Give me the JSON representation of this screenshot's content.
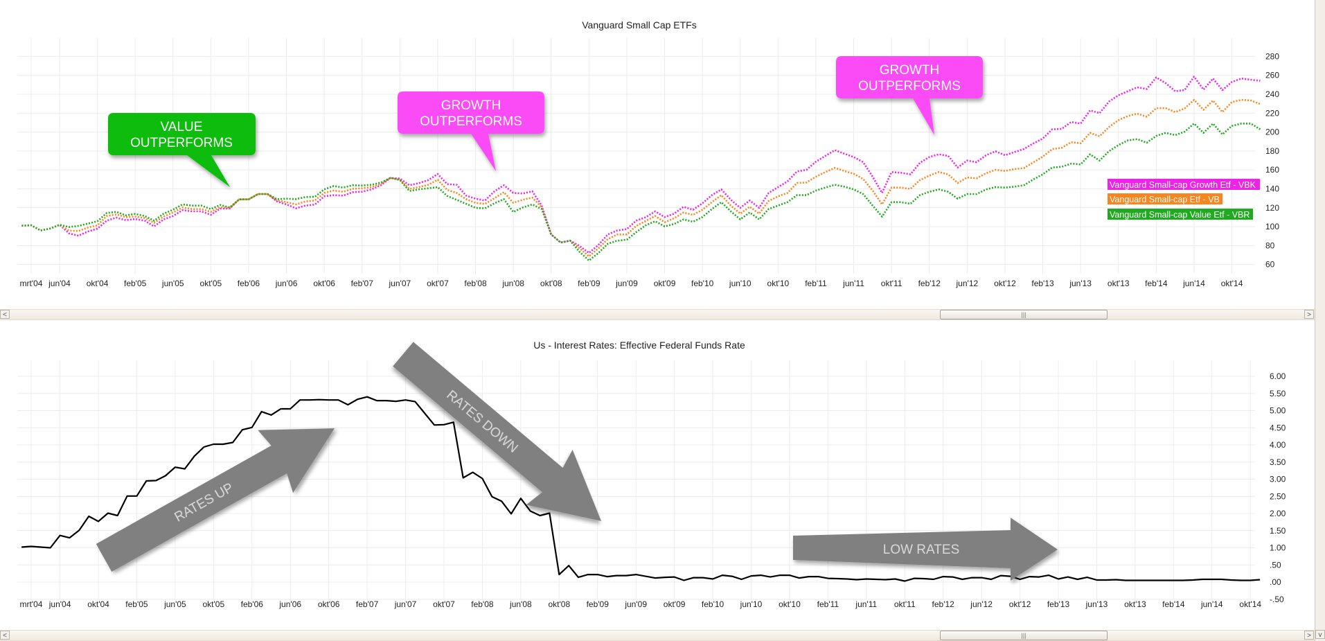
{
  "chart_data": [
    {
      "type": "line",
      "title": "Vanguard Small Cap ETFs",
      "x_tick_labels": [
        "mrt'04",
        "jun'04",
        "okt'04",
        "feb'05",
        "jun'05",
        "okt'05",
        "feb'06",
        "jun'06",
        "okt'06",
        "feb'07",
        "jun'07",
        "okt'07",
        "feb'08",
        "jun'08",
        "okt'08",
        "feb'09",
        "jun'09",
        "okt'09",
        "feb'10",
        "jun'10",
        "okt'10",
        "feb'11",
        "jun'11",
        "okt'11",
        "feb'12",
        "jun'12",
        "okt'12",
        "feb'13",
        "jun'13",
        "okt'13",
        "feb'14",
        "jun'14",
        "okt'14"
      ],
      "y_tick_labels": [
        "280",
        "260",
        "240",
        "220",
        "200",
        "180",
        "160",
        "140",
        "120",
        "100",
        "80",
        "60"
      ],
      "ylim": [
        60,
        280
      ],
      "y_axis_position": "right",
      "grid": true,
      "legend_position": "right",
      "line_style": "dotted",
      "x": [
        "2004-02",
        "2004-03",
        "2004-04",
        "2004-05",
        "2004-06",
        "2004-07",
        "2004-08",
        "2004-09",
        "2004-10",
        "2004-11",
        "2004-12",
        "2005-01",
        "2005-02",
        "2005-03",
        "2005-04",
        "2005-05",
        "2005-06",
        "2005-07",
        "2005-08",
        "2005-09",
        "2005-10",
        "2005-11",
        "2005-12",
        "2006-01",
        "2006-02",
        "2006-03",
        "2006-04",
        "2006-05",
        "2006-06",
        "2006-07",
        "2006-08",
        "2006-09",
        "2006-10",
        "2006-11",
        "2006-12",
        "2007-01",
        "2007-02",
        "2007-03",
        "2007-04",
        "2007-05",
        "2007-06",
        "2007-07",
        "2007-08",
        "2007-09",
        "2007-10",
        "2007-11",
        "2007-12",
        "2008-01",
        "2008-02",
        "2008-03",
        "2008-04",
        "2008-05",
        "2008-06",
        "2008-07",
        "2008-08",
        "2008-09",
        "2008-10",
        "2008-11",
        "2008-12",
        "2009-01",
        "2009-02",
        "2009-03",
        "2009-04",
        "2009-05",
        "2009-06",
        "2009-07",
        "2009-08",
        "2009-09",
        "2009-10",
        "2009-11",
        "2009-12",
        "2010-01",
        "2010-02",
        "2010-03",
        "2010-04",
        "2010-05",
        "2010-06",
        "2010-07",
        "2010-08",
        "2010-09",
        "2010-10",
        "2010-11",
        "2010-12",
        "2011-01",
        "2011-02",
        "2011-03",
        "2011-04",
        "2011-05",
        "2011-06",
        "2011-07",
        "2011-08",
        "2011-09",
        "2011-10",
        "2011-11",
        "2011-12",
        "2012-01",
        "2012-02",
        "2012-03",
        "2012-04",
        "2012-05",
        "2012-06",
        "2012-07",
        "2012-08",
        "2012-09",
        "2012-10",
        "2012-11",
        "2012-12",
        "2013-01",
        "2013-02",
        "2013-03",
        "2013-04",
        "2013-05",
        "2013-06",
        "2013-07",
        "2013-08",
        "2013-09",
        "2013-10",
        "2013-11",
        "2013-12",
        "2014-01",
        "2014-02",
        "2014-03",
        "2014-04",
        "2014-05",
        "2014-06",
        "2014-07",
        "2014-08",
        "2014-09",
        "2014-10",
        "2014-11",
        "2014-12",
        "2015-01"
      ],
      "series": [
        {
          "name": "Vanguard Small-cap Growth Etf - VBK",
          "color": "#ee22e8",
          "values": [
            101,
            101.5,
            96,
            98,
            102,
            93,
            90.5,
            94.9,
            97.9,
            106.4,
            109.6,
            106.9,
            108.1,
            106.4,
            100.3,
            107.6,
            111.3,
            117.4,
            116.2,
            116.2,
            112.5,
            119.1,
            119.1,
            128.9,
            128.9,
            134.5,
            134.5,
            126.7,
            123.5,
            119.4,
            122.3,
            123.3,
            132.1,
            133.3,
            132.8,
            136.5,
            137,
            139.4,
            143.8,
            151.6,
            150.9,
            143.8,
            146,
            149.2,
            155.7,
            145,
            144.3,
            132.8,
            129.6,
            127.7,
            137.4,
            143.8,
            135.7,
            135,
            137.4,
            122.3,
            91.8,
            83.2,
            85.2,
            79.6,
            72.2,
            80.8,
            91.8,
            96,
            97.4,
            106.4,
            110,
            116.2,
            110.1,
            113.8,
            121,
            117.9,
            124.7,
            133.3,
            139.4,
            128.4,
            119.9,
            127.7,
            119.9,
            135.7,
            141.8,
            147.9,
            158.4,
            160.1,
            168.7,
            174.8,
            180.9,
            177.2,
            173.6,
            168.2,
            152.8,
            135.7,
            157.7,
            157,
            155.3,
            167.5,
            173.6,
            176.5,
            174.8,
            162.6,
            169.9,
            168.2,
            175.5,
            179.7,
            175.5,
            178.9,
            182.1,
            188,
            193.1,
            202.9,
            203.4,
            210.7,
            209,
            222.9,
            220,
            232.2,
            239,
            243.2,
            247.3,
            245.6,
            257.8,
            251.7,
            243.2,
            244.4,
            258.6,
            244.9,
            256.6,
            244.4,
            253,
            256.6,
            255.4,
            254.2
          ]
        },
        {
          "name": "Vanguard Small-cap Etf - VB",
          "color": "#f7861f",
          "values": [
            101,
            101.5,
            96,
            98,
            102,
            95.9,
            95.4,
            99.1,
            101.5,
            111.3,
            113,
            110.1,
            110.6,
            109.1,
            104,
            110.6,
            115,
            120.3,
            118.6,
            118.6,
            115.7,
            120.6,
            119.8,
            128.9,
            128.9,
            134.5,
            134.5,
            127.7,
            126,
            123.5,
            126.7,
            127.7,
            135.7,
            138.2,
            136.9,
            140.1,
            140.6,
            141.8,
            145.5,
            151.6,
            149.6,
            139.9,
            141.8,
            144.3,
            149.6,
            138.9,
            135.7,
            129.1,
            125.2,
            124,
            130.1,
            136.5,
            125.2,
            128.4,
            130.8,
            120.6,
            91.8,
            83.2,
            85.2,
            77.1,
            68.6,
            77.1,
            86.9,
            91.8,
            91.8,
            100.8,
            106,
            111.3,
            104.7,
            108.9,
            115,
            112.5,
            117.9,
            125.9,
            133.3,
            122.3,
            113.8,
            121.1,
            113.8,
            127.2,
            132.1,
            135.7,
            146.2,
            146.7,
            152.8,
            157.7,
            162.1,
            158.9,
            156,
            150.4,
            138.2,
            123.5,
            141.3,
            141.3,
            139.9,
            149.2,
            154,
            157.7,
            155.3,
            146.2,
            152,
            151.1,
            156.5,
            160.1,
            158.9,
            160.9,
            161.9,
            168,
            174,
            182.1,
            183.3,
            189.4,
            188.2,
            199.2,
            195.5,
            205.3,
            212.6,
            217,
            219.5,
            216.3,
            225.3,
            225.3,
            221.2,
            224.9,
            234.1,
            223.6,
            233.4,
            221.2,
            231.7,
            234.1,
            233.4,
            229.7
          ]
        },
        {
          "name": "Vanguard Small-cap Value Etf - VBR",
          "color": "#1faa1f",
          "values": [
            101,
            101.5,
            96,
            98,
            102,
            99.6,
            100.8,
            103.2,
            105.7,
            114.5,
            115.7,
            112,
            113.5,
            111.3,
            106.4,
            113.7,
            117.9,
            123.5,
            122.3,
            122.3,
            118.6,
            123,
            120.3,
            128.9,
            128.9,
            134.5,
            134.5,
            129.1,
            129.6,
            129.1,
            131.3,
            131.6,
            139.4,
            143,
            141.3,
            143.8,
            143.5,
            144.3,
            146.7,
            151.6,
            149.2,
            137.7,
            139.4,
            140.6,
            141.8,
            132.5,
            128.4,
            124.2,
            119.9,
            119.4,
            124.7,
            129.1,
            115.5,
            120.3,
            123.5,
            118.6,
            91.8,
            83.2,
            85.2,
            73.5,
            64.2,
            72.2,
            82,
            85.2,
            86.2,
            94.2,
            101.5,
            105.7,
            100.3,
            102.8,
            107.7,
            105.2,
            110.1,
            118.6,
            125.9,
            116.2,
            107.7,
            115,
            107.7,
            118.6,
            122.3,
            125.9,
            133.3,
            133.3,
            138.2,
            141.3,
            144.3,
            142.3,
            139.4,
            134.5,
            122.3,
            110.6,
            125.9,
            125.9,
            124.2,
            133.3,
            136.9,
            139.4,
            136.9,
            129.6,
            134.5,
            134.5,
            139.4,
            141.8,
            141.3,
            142.3,
            143.8,
            150,
            155.3,
            162.6,
            163.3,
            166.7,
            165.8,
            176.5,
            169.9,
            179.7,
            186.3,
            191.2,
            192.6,
            188.7,
            196,
            199.2,
            196.8,
            200.4,
            209,
            199.2,
            209,
            197.5,
            206.5,
            209,
            209,
            202.9
          ]
        }
      ],
      "annotations": [
        {
          "lines": [
            "VALUE",
            "OUTPERFORMS"
          ],
          "color": "#0cbc0c"
        },
        {
          "lines": [
            "GROWTH",
            "OUTPERFORMS"
          ],
          "color": "#fb4cf6"
        },
        {
          "lines": [
            "GROWTH",
            "OUTPERFORMS"
          ],
          "color": "#fb4cf6"
        }
      ]
    },
    {
      "type": "line",
      "title": "Us - Interest Rates: Effective Federal Funds Rate",
      "x_tick_labels": [
        "mrt'04",
        "jun'04",
        "okt'04",
        "feb'05",
        "jun'05",
        "okt'05",
        "feb'06",
        "jun'06",
        "okt'06",
        "feb'07",
        "jun'07",
        "okt'07",
        "feb'08",
        "jun'08",
        "okt'08",
        "feb'09",
        "jun'09",
        "okt'09",
        "feb'10",
        "jun'10",
        "okt'10",
        "feb'11",
        "jun'11",
        "okt'11",
        "feb'12",
        "jun'12",
        "okt'12",
        "feb'13",
        "jun'13",
        "okt'13",
        "feb'14",
        "jun'14",
        "okt'14"
      ],
      "y_tick_labels": [
        "6.00",
        "5.50",
        "5.00",
        "4.50",
        "4.00",
        "3.50",
        "3.00",
        "2.50",
        "2.00",
        "1.50",
        "1.00",
        ".50",
        ".00",
        "-.50"
      ],
      "ylim": [
        -0.5,
        6.0
      ],
      "y_axis_position": "right",
      "grid": true,
      "x": [
        "2004-02",
        "2004-03",
        "2004-04",
        "2004-05",
        "2004-06",
        "2004-07",
        "2004-08",
        "2004-09",
        "2004-10",
        "2004-11",
        "2004-12",
        "2005-01",
        "2005-02",
        "2005-03",
        "2005-04",
        "2005-05",
        "2005-06",
        "2005-07",
        "2005-08",
        "2005-09",
        "2005-10",
        "2005-11",
        "2005-12",
        "2006-01",
        "2006-02",
        "2006-03",
        "2006-04",
        "2006-05",
        "2006-06",
        "2006-07",
        "2006-08",
        "2006-09",
        "2006-10",
        "2006-11",
        "2006-12",
        "2007-01",
        "2007-02",
        "2007-03",
        "2007-04",
        "2007-05",
        "2007-06",
        "2007-07",
        "2007-08",
        "2007-09",
        "2007-10",
        "2007-11",
        "2007-12",
        "2008-01",
        "2008-02",
        "2008-03",
        "2008-04",
        "2008-05",
        "2008-06",
        "2008-07",
        "2008-08",
        "2008-09",
        "2008-10",
        "2008-11",
        "2008-12",
        "2009-01",
        "2009-02",
        "2009-03",
        "2009-04",
        "2009-05",
        "2009-06",
        "2009-07",
        "2009-08",
        "2009-09",
        "2009-10",
        "2009-11",
        "2009-12",
        "2010-01",
        "2010-02",
        "2010-03",
        "2010-04",
        "2010-05",
        "2010-06",
        "2010-07",
        "2010-08",
        "2010-09",
        "2010-10",
        "2010-11",
        "2010-12",
        "2011-01",
        "2011-02",
        "2011-03",
        "2011-04",
        "2011-05",
        "2011-06",
        "2011-07",
        "2011-08",
        "2011-09",
        "2011-10",
        "2011-11",
        "2011-12",
        "2012-01",
        "2012-02",
        "2012-03",
        "2012-04",
        "2012-05",
        "2012-06",
        "2012-07",
        "2012-08",
        "2012-09",
        "2012-10",
        "2012-11",
        "2012-12",
        "2013-01",
        "2013-02",
        "2013-03",
        "2013-04",
        "2013-05",
        "2013-06",
        "2013-07",
        "2013-08",
        "2013-09",
        "2013-10",
        "2013-11",
        "2013-12",
        "2014-01",
        "2014-02",
        "2014-03",
        "2014-04",
        "2014-05",
        "2014-06",
        "2014-07",
        "2014-08",
        "2014-09",
        "2014-10",
        "2014-11"
      ],
      "series": [
        {
          "color": "#000000",
          "values": [
            1.02,
            1.04,
            1.02,
            1.0,
            1.36,
            1.29,
            1.51,
            1.92,
            1.77,
            2.01,
            1.94,
            2.51,
            2.51,
            2.95,
            2.96,
            3.1,
            3.35,
            3.3,
            3.67,
            3.94,
            4.02,
            4.02,
            4.07,
            4.44,
            4.51,
            4.97,
            4.87,
            5.05,
            5.05,
            5.31,
            5.31,
            5.32,
            5.31,
            5.31,
            5.17,
            5.33,
            5.4,
            5.29,
            5.29,
            5.27,
            5.31,
            5.26,
            4.92,
            4.58,
            4.59,
            4.66,
            3.04,
            3.2,
            3.02,
            2.49,
            2.36,
            1.99,
            2.44,
            2.07,
            1.94,
            2.01,
            0.22,
            0.48,
            0.14,
            0.22,
            0.22,
            0.16,
            0.19,
            0.19,
            0.22,
            0.17,
            0.12,
            0.14,
            0.15,
            0.05,
            0.13,
            0.13,
            0.09,
            0.2,
            0.17,
            0.08,
            0.18,
            0.2,
            0.15,
            0.2,
            0.2,
            0.12,
            0.16,
            0.16,
            0.11,
            0.1,
            0.09,
            0.07,
            0.09,
            0.08,
            0.07,
            0.09,
            0.03,
            0.11,
            0.1,
            0.08,
            0.16,
            0.15,
            0.08,
            0.13,
            0.13,
            0.08,
            0.19,
            0.17,
            0.08,
            0.16,
            0.15,
            0.2,
            0.09,
            0.15,
            0.08,
            0.14,
            0.06,
            0.06,
            0.07,
            0.05,
            0.05,
            0.05,
            0.05,
            0.05,
            0.05,
            0.05,
            0.06,
            0.08,
            0.08,
            0.08,
            0.06,
            0.05,
            0.05,
            0.07
          ]
        }
      ],
      "annotations": [
        {
          "label": "RATES UP",
          "color": "#808080"
        },
        {
          "label": "RATES DOWN",
          "color": "#808080"
        },
        {
          "label": "LOW RATES",
          "color": "#808080"
        }
      ]
    }
  ],
  "scrollbars": {
    "left_arrow": "<",
    "right_arrow": ">",
    "down_arrow": "v",
    "thumb_grip": "|||"
  }
}
